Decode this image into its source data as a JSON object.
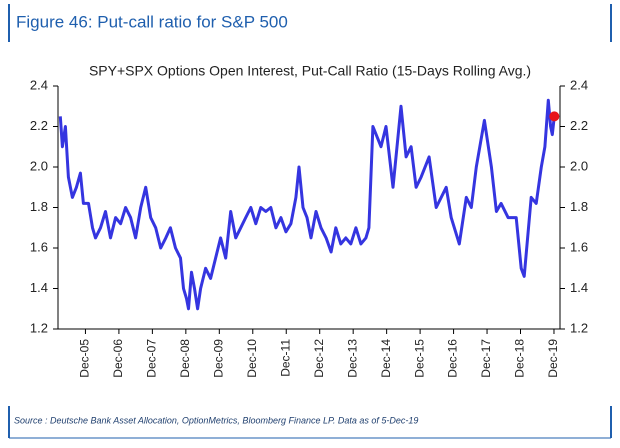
{
  "figure_title": "Figure 46: Put-call ratio for S&P 500",
  "source": "Source : Deutsche Bank Asset Allocation, OptionMetrics, Bloomberg Finance LP. Data as of 5-Dec-19",
  "chart_data": {
    "type": "line",
    "title": "SPY+SPX Options Open Interest, Put-Call Ratio (15-Days Rolling Avg.)",
    "x": [
      2005.17,
      2005.23,
      2005.32,
      2005.41,
      2005.53,
      2005.65,
      2005.77,
      2005.86,
      2006.01,
      2006.13,
      2006.22,
      2006.37,
      2006.52,
      2006.67,
      2006.82,
      2006.97,
      2007.12,
      2007.27,
      2007.42,
      2007.57,
      2007.72,
      2007.87,
      2008.02,
      2008.17,
      2008.32,
      2008.46,
      2008.61,
      2008.76,
      2008.85,
      2008.94,
      2009.0,
      2009.09,
      2009.18,
      2009.27,
      2009.36,
      2009.51,
      2009.66,
      2009.81,
      2009.96,
      2010.11,
      2010.26,
      2010.41,
      2010.56,
      2010.71,
      2010.86,
      2011.01,
      2011.16,
      2011.31,
      2011.46,
      2011.61,
      2011.76,
      2011.91,
      2012.06,
      2012.21,
      2012.3,
      2012.42,
      2012.54,
      2012.66,
      2012.81,
      2012.96,
      2013.11,
      2013.26,
      2013.4,
      2013.55,
      2013.7,
      2013.85,
      2014.0,
      2014.15,
      2014.3,
      2014.39,
      2014.51,
      2014.75,
      2014.9,
      2015.11,
      2015.35,
      2015.5,
      2015.65,
      2015.8,
      2015.95,
      2016.19,
      2016.4,
      2016.7,
      2016.85,
      2017.09,
      2017.3,
      2017.45,
      2017.6,
      2017.84,
      2018.05,
      2018.2,
      2018.34,
      2018.55,
      2018.79,
      2018.94,
      2019.03,
      2019.24,
      2019.39,
      2019.54,
      2019.65,
      2019.75,
      2019.82,
      2019.87,
      2019.93
    ],
    "series": [
      {
        "color": "#3535e0",
        "values": [
          2.25,
          2.1,
          2.2,
          1.95,
          1.85,
          1.9,
          1.97,
          1.82,
          1.82,
          1.7,
          1.65,
          1.7,
          1.78,
          1.65,
          1.75,
          1.72,
          1.8,
          1.75,
          1.65,
          1.8,
          1.9,
          1.75,
          1.7,
          1.6,
          1.65,
          1.7,
          1.6,
          1.55,
          1.4,
          1.35,
          1.3,
          1.48,
          1.4,
          1.3,
          1.4,
          1.5,
          1.45,
          1.55,
          1.65,
          1.55,
          1.78,
          1.65,
          1.7,
          1.75,
          1.8,
          1.72,
          1.8,
          1.78,
          1.8,
          1.7,
          1.75,
          1.68,
          1.72,
          1.85,
          2.0,
          1.8,
          1.75,
          1.65,
          1.78,
          1.7,
          1.65,
          1.58,
          1.7,
          1.62,
          1.65,
          1.62,
          1.7,
          1.62,
          1.65,
          1.7,
          2.2,
          2.1,
          2.2,
          1.9,
          2.3,
          2.05,
          2.1,
          1.9,
          1.95,
          2.05,
          1.8,
          1.9,
          1.75,
          1.62,
          1.85,
          1.8,
          2.0,
          2.23,
          2.0,
          1.78,
          1.82,
          1.75,
          1.75,
          1.5,
          1.46,
          1.85,
          1.82,
          2.0,
          2.1,
          2.33,
          2.2,
          2.16,
          2.25
        ]
      }
    ],
    "highlight_color": "#e8141b",
    "xlim": [
      2005.1,
      2020.1
    ],
    "xticks": [
      {
        "value": 2005.92,
        "label": "Dec-05"
      },
      {
        "value": 2006.92,
        "label": "Dec-06"
      },
      {
        "value": 2007.92,
        "label": "Dec-07"
      },
      {
        "value": 2008.92,
        "label": "Dec-08"
      },
      {
        "value": 2009.92,
        "label": "Dec-09"
      },
      {
        "value": 2010.92,
        "label": "Dec-10"
      },
      {
        "value": 2011.92,
        "label": "Dec-11"
      },
      {
        "value": 2012.92,
        "label": "Dec-12"
      },
      {
        "value": 2013.92,
        "label": "Dec-13"
      },
      {
        "value": 2014.92,
        "label": "Dec-14"
      },
      {
        "value": 2015.92,
        "label": "Dec-15"
      },
      {
        "value": 2016.92,
        "label": "Dec-16"
      },
      {
        "value": 2017.92,
        "label": "Dec-17"
      },
      {
        "value": 2018.92,
        "label": "Dec-18"
      },
      {
        "value": 2019.92,
        "label": "Dec-19"
      }
    ],
    "ylim": [
      1.2,
      2.4
    ],
    "yticks": [
      1.2,
      1.4,
      1.6,
      1.8,
      {
        "value": 2,
        "label": "2.0"
      },
      2.2,
      2.4
    ]
  }
}
